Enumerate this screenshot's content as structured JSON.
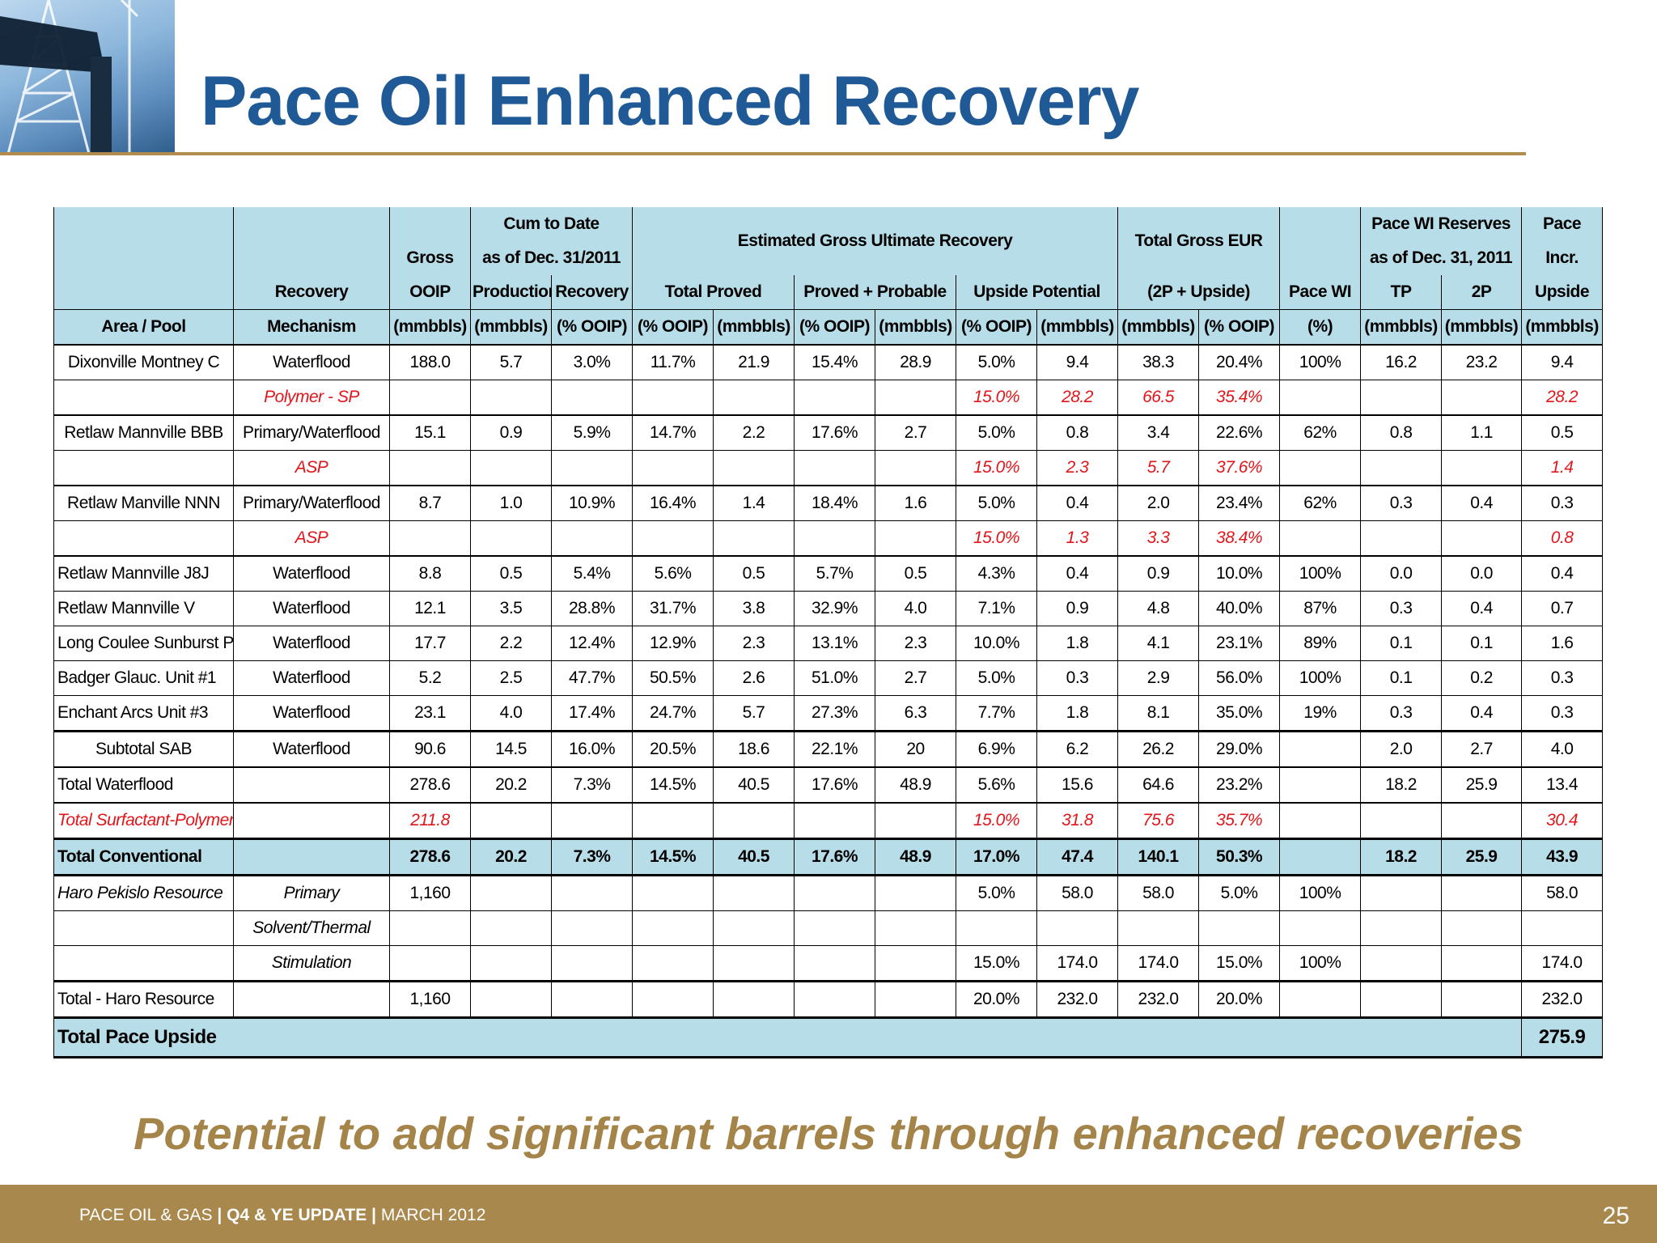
{
  "title": "Pace Oil Enhanced Recovery",
  "tagline": "Potential to add significant barrels through enhanced recoveries",
  "footer": {
    "company": "PACE OIL & GAS",
    "sep": "|",
    "update": "Q4 & YE UPDATE",
    "date": "MARCH 2012",
    "page": "25"
  },
  "header": {
    "cum_to_date": "Cum to Date",
    "as_of_dec_2011": "as of Dec. 31/2011",
    "estimated_gur": "Estimated Gross Ultimate Recovery",
    "total_gross_eur": "Total Gross EUR",
    "pace_wi_reserves": "Pace WI Reserves",
    "as_of_dec_31_2011": "as of Dec. 31, 2011",
    "pace": "Pace",
    "incr": "Incr.",
    "gross": "Gross",
    "recovery": "Recovery",
    "ooip": "OOIP",
    "production": "Production",
    "recovery2": "Recovery",
    "total_proved": "Total Proved",
    "proved_probable": "Proved + Probable",
    "upside_potential": "Upside Potential",
    "two_p_upside": "(2P + Upside)",
    "pace_wi": "Pace WI",
    "tp": "TP",
    "two_p": "2P",
    "upside": "Upside",
    "area_pool": "Area / Pool",
    "mechanism": "Mechanism",
    "units": [
      "(mmbbls)",
      "(mmbbls)",
      "(% OOIP)",
      "(% OOIP)",
      "(mmbbls)",
      "(% OOIP)",
      "(mmbbls)",
      "(% OOIP)",
      "(mmbbls)",
      "(mmbbls)",
      "(% OOIP)",
      "(%)",
      "(mmbbls)",
      "(mmbbls)",
      "(mmbbls)"
    ]
  },
  "rows": [
    {
      "area": "Dixonville Montney C",
      "mech": "Waterflood",
      "cells": [
        "188.0",
        "5.7",
        "3.0%",
        "11.7%",
        "21.9",
        "15.4%",
        "28.9",
        "5.0%",
        "9.4",
        "38.3",
        "20.4%",
        "100%",
        "16.2",
        "23.2",
        "9.4"
      ]
    },
    {
      "area": "",
      "mech": "Polymer - SP",
      "cells": [
        "",
        "",
        "",
        "",
        "",
        "",
        "",
        "15.0%",
        "28.2",
        "66.5",
        "35.4%",
        "",
        "",
        "",
        "28.2"
      ]
    },
    {
      "area": "Retlaw Mannville BBB",
      "mech": "Primary/Waterflood",
      "cells": [
        "15.1",
        "0.9",
        "5.9%",
        "14.7%",
        "2.2",
        "17.6%",
        "2.7",
        "5.0%",
        "0.8",
        "3.4",
        "22.6%",
        "62%",
        "0.8",
        "1.1",
        "0.5"
      ]
    },
    {
      "area": "",
      "mech": "ASP",
      "cells": [
        "",
        "",
        "",
        "",
        "",
        "",
        "",
        "15.0%",
        "2.3",
        "5.7",
        "37.6%",
        "",
        "",
        "",
        "1.4"
      ]
    },
    {
      "area": "Retlaw Manville NNN",
      "mech": "Primary/Waterflood",
      "cells": [
        "8.7",
        "1.0",
        "10.9%",
        "16.4%",
        "1.4",
        "18.4%",
        "1.6",
        "5.0%",
        "0.4",
        "2.0",
        "23.4%",
        "62%",
        "0.3",
        "0.4",
        "0.3"
      ]
    },
    {
      "area": "",
      "mech": "ASP",
      "cells": [
        "",
        "",
        "",
        "",
        "",
        "",
        "",
        "15.0%",
        "1.3",
        "3.3",
        "38.4%",
        "",
        "",
        "",
        "0.8"
      ]
    },
    {
      "area": "Retlaw Mannville J8J",
      "mech": "Waterflood",
      "cells": [
        "8.8",
        "0.5",
        "5.4%",
        "5.6%",
        "0.5",
        "5.7%",
        "0.5",
        "4.3%",
        "0.4",
        "0.9",
        "10.0%",
        "100%",
        "0.0",
        "0.0",
        "0.4"
      ]
    },
    {
      "area": "Retlaw Mannville V",
      "mech": "Waterflood",
      "cells": [
        "12.1",
        "3.5",
        "28.8%",
        "31.7%",
        "3.8",
        "32.9%",
        "4.0",
        "7.1%",
        "0.9",
        "4.8",
        "40.0%",
        "87%",
        "0.3",
        "0.4",
        "0.7"
      ]
    },
    {
      "area": "Long Coulee Sunburst P",
      "mech": "Waterflood",
      "cells": [
        "17.7",
        "2.2",
        "12.4%",
        "12.9%",
        "2.3",
        "13.1%",
        "2.3",
        "10.0%",
        "1.8",
        "4.1",
        "23.1%",
        "89%",
        "0.1",
        "0.1",
        "1.6"
      ]
    },
    {
      "area": "Badger Glauc. Unit #1",
      "mech": "Waterflood",
      "cells": [
        "5.2",
        "2.5",
        "47.7%",
        "50.5%",
        "2.6",
        "51.0%",
        "2.7",
        "5.0%",
        "0.3",
        "2.9",
        "56.0%",
        "100%",
        "0.1",
        "0.2",
        "0.3"
      ]
    },
    {
      "area": "Enchant Arcs Unit #3",
      "mech": "Waterflood",
      "cells": [
        "23.1",
        "4.0",
        "17.4%",
        "24.7%",
        "5.7",
        "27.3%",
        "6.3",
        "7.7%",
        "1.8",
        "8.1",
        "35.0%",
        "19%",
        "0.3",
        "0.4",
        "0.3"
      ]
    },
    {
      "area": "Subtotal SAB",
      "mech": "Waterflood",
      "cells": [
        "90.6",
        "14.5",
        "16.0%",
        "20.5%",
        "18.6",
        "22.1%",
        "20",
        "6.9%",
        "6.2",
        "26.2",
        "29.0%",
        "",
        "2.0",
        "2.7",
        "4.0"
      ]
    },
    {
      "area": "Total Waterflood",
      "mech": "",
      "cells": [
        "278.6",
        "20.2",
        "7.3%",
        "14.5%",
        "40.5",
        "17.6%",
        "48.9",
        "5.6%",
        "15.6",
        "64.6",
        "23.2%",
        "",
        "18.2",
        "25.9",
        "13.4"
      ]
    },
    {
      "area": "Total Surfactant-Polymer",
      "mech": "",
      "cells": [
        "211.8",
        "",
        "",
        "",
        "",
        "",
        "",
        "15.0%",
        "31.8",
        "75.6",
        "35.7%",
        "",
        "",
        "",
        "30.4"
      ]
    },
    {
      "area": "Total Conventional",
      "mech": "",
      "cells": [
        "278.6",
        "20.2",
        "7.3%",
        "14.5%",
        "40.5",
        "17.6%",
        "48.9",
        "17.0%",
        "47.4",
        "140.1",
        "50.3%",
        "",
        "18.2",
        "25.9",
        "43.9"
      ]
    },
    {
      "area": "Haro Pekislo Resource",
      "mech": "Primary",
      "cells": [
        "1,160",
        "",
        "",
        "",
        "",
        "",
        "",
        "5.0%",
        "58.0",
        "58.0",
        "5.0%",
        "100%",
        "",
        "",
        "58.0"
      ]
    },
    {
      "area": "",
      "mech": "Solvent/Thermal",
      "cells": [
        "",
        "",
        "",
        "",
        "",
        "",
        "",
        "",
        "",
        "",
        "",
        "",
        "",
        "",
        ""
      ]
    },
    {
      "area": "",
      "mech": "Stimulation",
      "cells": [
        "",
        "",
        "",
        "",
        "",
        "",
        "",
        "15.0%",
        "174.0",
        "174.0",
        "15.0%",
        "100%",
        "",
        "",
        "174.0"
      ]
    },
    {
      "area": "Total - Haro Resource",
      "mech": "",
      "cells": [
        "1,160",
        "",
        "",
        "",
        "",
        "",
        "",
        "20.0%",
        "232.0",
        "232.0",
        "20.0%",
        "",
        "",
        "",
        "232.0"
      ]
    }
  ],
  "total_pace_upside": {
    "label": "Total Pace Upside",
    "value": "275.9"
  }
}
